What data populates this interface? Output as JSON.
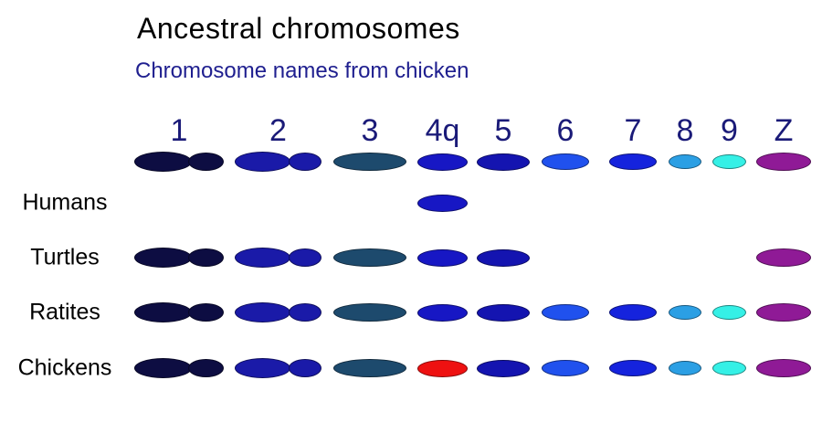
{
  "title": "Ancestral chromosomes",
  "subtitle": "Chromosome names from chicken",
  "columns": [
    "1",
    "2",
    "3",
    "4q",
    "5",
    "6",
    "7",
    "8",
    "9",
    "Z"
  ],
  "palette": {
    "1": "#0d0d42",
    "2": "#1a1aa8",
    "3": "#1d4a6d",
    "4q": "#1717c4",
    "5": "#1414b0",
    "6": "#2051ee",
    "7": "#1523dd",
    "8": "#2b9fe4",
    "9": "#35f0e6",
    "Z": "#8f1a96",
    "highlight_red": "#ee1111"
  },
  "text_colors": {
    "title": "#000000",
    "subtitle": "#1f1f8f",
    "column_header": "#1a1a78",
    "row_label": "#000000"
  },
  "rows": [
    {
      "name": "ancestral",
      "label": "",
      "chromosomes": [
        "1",
        "2",
        "3",
        "4q",
        "5",
        "6",
        "7",
        "8",
        "9",
        "Z"
      ]
    },
    {
      "name": "humans",
      "label": "Humans",
      "chromosomes": [
        "4q"
      ]
    },
    {
      "name": "turtles",
      "label": "Turtles",
      "chromosomes": [
        "1",
        "2",
        "3",
        "4q",
        "5",
        "Z"
      ]
    },
    {
      "name": "ratites",
      "label": "Ratites",
      "chromosomes": [
        "1",
        "2",
        "3",
        "4q",
        "5",
        "6",
        "7",
        "8",
        "9",
        "Z"
      ]
    },
    {
      "name": "chickens",
      "label": "Chickens",
      "chromosomes": [
        "1",
        "2",
        "3",
        "4q",
        "5",
        "6",
        "7",
        "8",
        "9",
        "Z"
      ],
      "color_overrides": {
        "4q": "highlight_red"
      }
    }
  ]
}
